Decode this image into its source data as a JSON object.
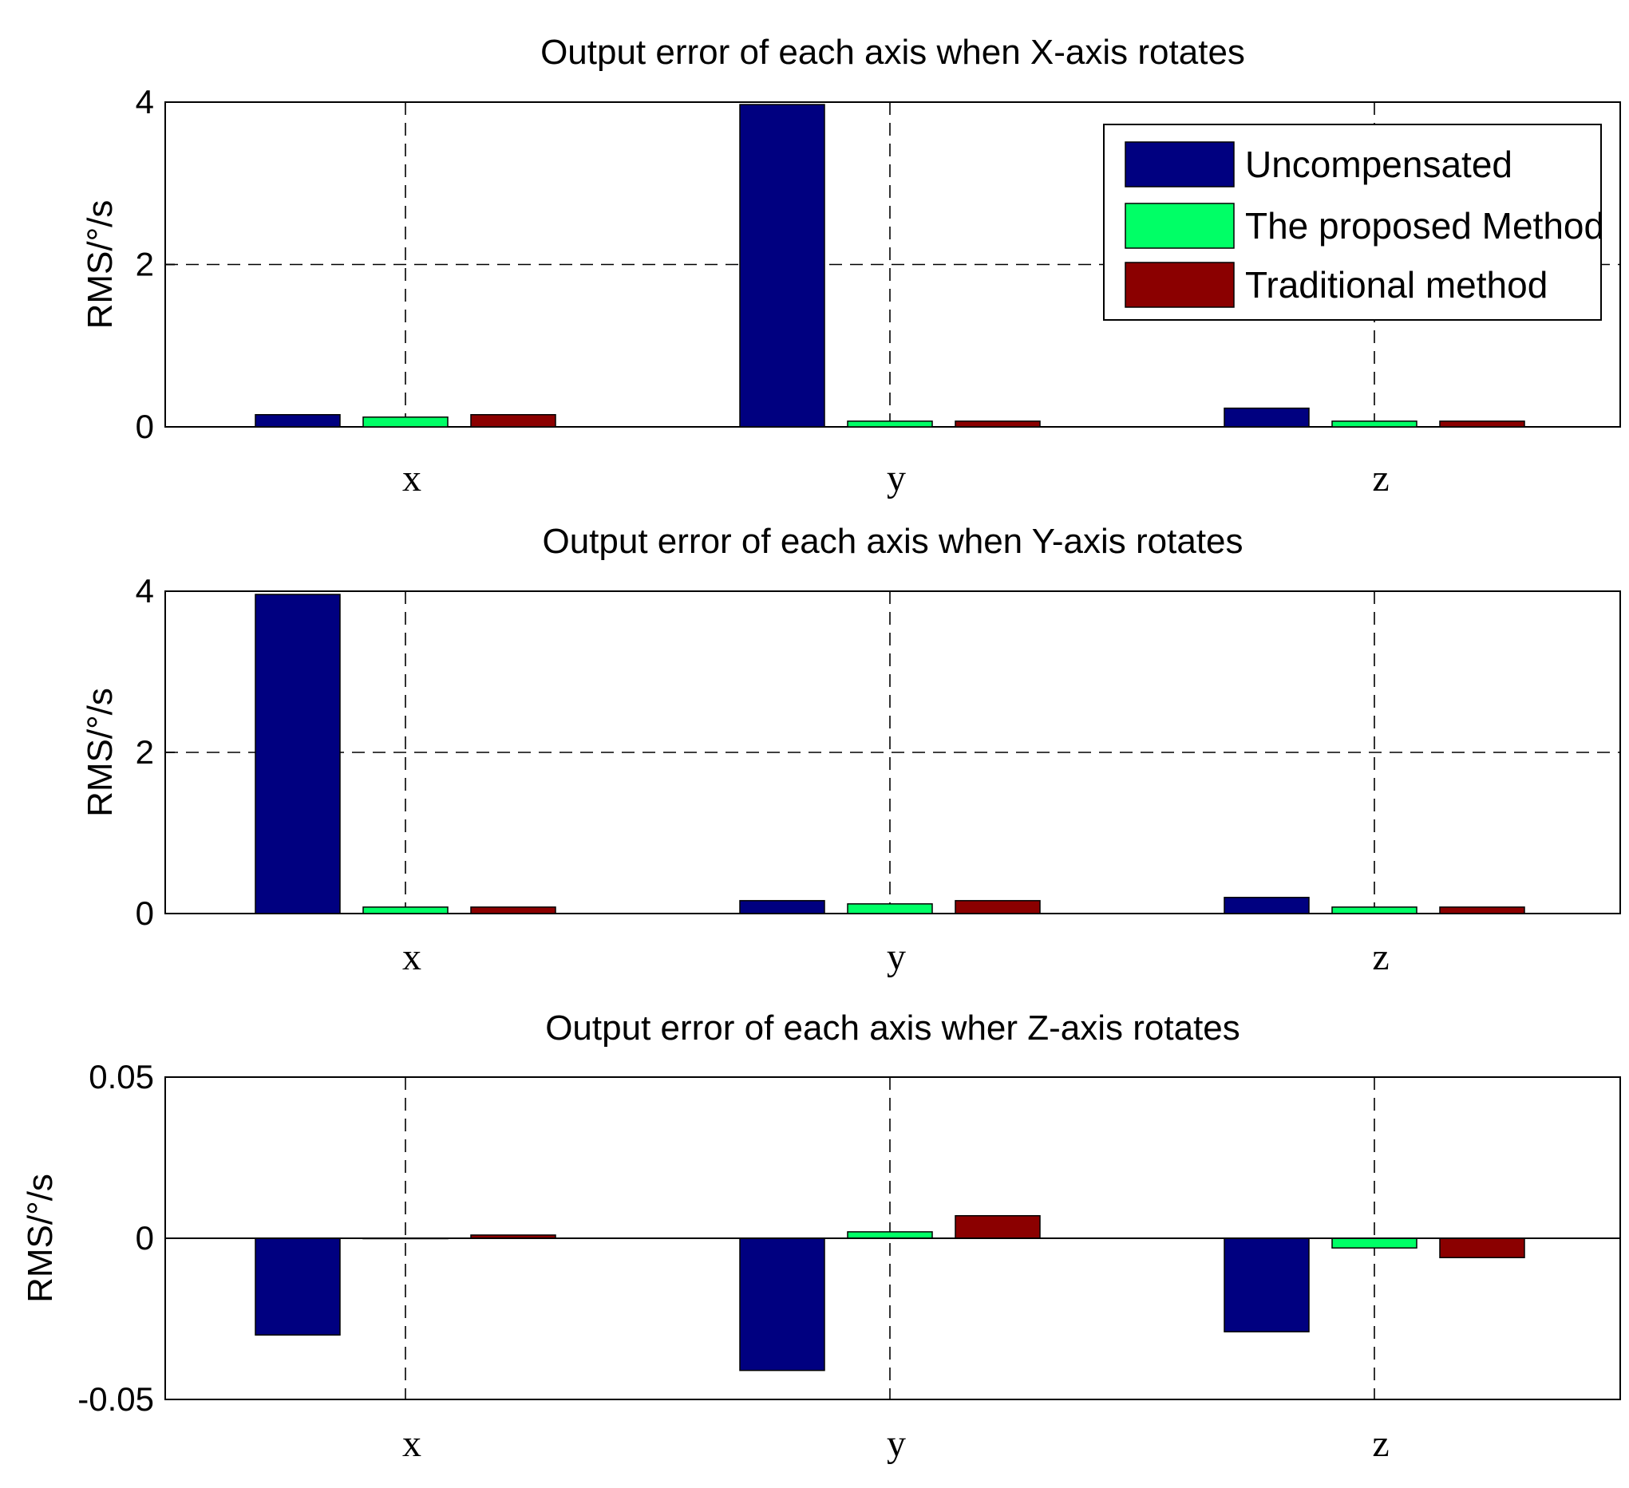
{
  "chart_data": [
    {
      "type": "bar",
      "title": "Output error of each axis when X-axis rotates",
      "xlabel": "",
      "ylabel": "RMS/°/s",
      "categories": [
        "x",
        "y",
        "z"
      ],
      "ylim": [
        0,
        4
      ],
      "yticks": [
        0,
        2,
        4
      ],
      "ytick_labels": [
        "0",
        "2",
        "4"
      ],
      "grid": true,
      "legend_position": "top-right",
      "series": [
        {
          "name": "Uncompensated",
          "color": "#000080",
          "values": [
            0.15,
            3.97,
            0.23
          ]
        },
        {
          "name": "The proposed Method",
          "color": "#00ff66",
          "values": [
            0.12,
            0.07,
            0.07
          ]
        },
        {
          "name": "Traditional method",
          "color": "#8b0000",
          "values": [
            0.15,
            0.07,
            0.07
          ]
        }
      ]
    },
    {
      "type": "bar",
      "title": "Output error of each axis when Y-axis rotates",
      "xlabel": "",
      "ylabel": "RMS/°/s",
      "categories": [
        "x",
        "y",
        "z"
      ],
      "ylim": [
        0,
        4
      ],
      "yticks": [
        0,
        2,
        4
      ],
      "ytick_labels": [
        "0",
        "2",
        "4"
      ],
      "grid": true,
      "series": [
        {
          "name": "Uncompensated",
          "color": "#000080",
          "values": [
            3.96,
            0.16,
            0.2
          ]
        },
        {
          "name": "The proposed Method",
          "color": "#00ff66",
          "values": [
            0.08,
            0.12,
            0.08
          ]
        },
        {
          "name": "Traditional method",
          "color": "#8b0000",
          "values": [
            0.08,
            0.16,
            0.08
          ]
        }
      ]
    },
    {
      "type": "bar",
      "title": "Output error of each axis wher Z-axis rotates",
      "xlabel": "",
      "ylabel": "RMS/°/s",
      "categories": [
        "x",
        "y",
        "z"
      ],
      "ylim": [
        -0.05,
        0.05
      ],
      "yticks": [
        -0.05,
        0,
        0.05
      ],
      "ytick_labels": [
        "-0.05",
        "0",
        "0.05"
      ],
      "grid": true,
      "series": [
        {
          "name": "Uncompensated",
          "color": "#000080",
          "values": [
            -0.03,
            -0.041,
            -0.029
          ]
        },
        {
          "name": "The proposed Method",
          "color": "#00ff66",
          "values": [
            0.0,
            0.002,
            -0.003
          ]
        },
        {
          "name": "Traditional method",
          "color": "#8b0000",
          "values": [
            0.001,
            0.007,
            -0.006
          ]
        }
      ]
    }
  ]
}
